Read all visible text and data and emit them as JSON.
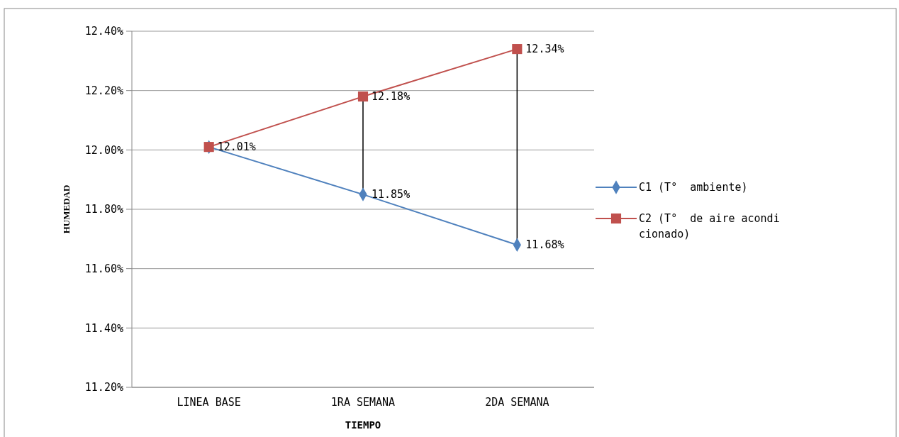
{
  "chart_data": {
    "type": "line",
    "xlabel": "TIEMPO",
    "ylabel": "HUMEDAD",
    "categories": [
      "LINEA BASE",
      "1RA SEMANA",
      "2DA SEMANA"
    ],
    "series": [
      {
        "name": "C1 (T°  ambiente)",
        "color": "#4f81bd",
        "marker": "diamond",
        "values": [
          12.01,
          11.85,
          11.68
        ],
        "value_labels": [
          null,
          "11.85%",
          "11.68%"
        ]
      },
      {
        "name": "C2 (T°  de aire acondicionado)",
        "color": "#c0504d",
        "marker": "square",
        "values": [
          12.01,
          12.18,
          12.34
        ],
        "value_labels": [
          "12.01%",
          "12.18%",
          "12.34%"
        ]
      }
    ],
    "ylim": [
      11.2,
      12.4
    ],
    "yticks": [
      {
        "value": 11.2,
        "label": "11.20%"
      },
      {
        "value": 11.4,
        "label": "11.40%"
      },
      {
        "value": 11.6,
        "label": "11.60%"
      },
      {
        "value": 11.8,
        "label": "11.80%"
      },
      {
        "value": 12.0,
        "label": "12.00%"
      },
      {
        "value": 12.2,
        "label": "12.20%"
      },
      {
        "value": 12.4,
        "label": "12.40%"
      }
    ],
    "grid": "y",
    "legend": "right"
  }
}
